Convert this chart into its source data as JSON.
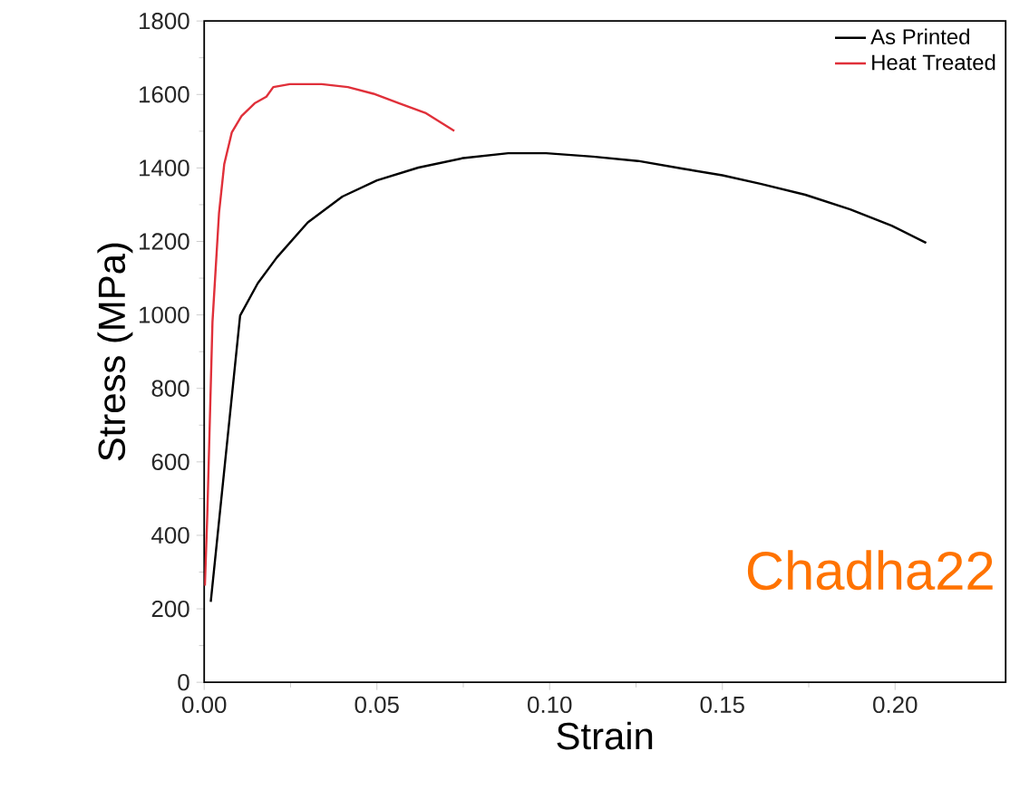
{
  "chart_data": {
    "type": "line",
    "xlabel": "Strain",
    "ylabel": "Stress (MPa)",
    "xlim": [
      0,
      0.232
    ],
    "ylim": [
      0,
      1800
    ],
    "xticks": [
      {
        "value": 0,
        "label": "0.00"
      },
      {
        "value": 0.05,
        "label": "0.05"
      },
      {
        "value": 0.1,
        "label": "0.10"
      },
      {
        "value": 0.15,
        "label": "0.15"
      },
      {
        "value": 0.2,
        "label": "0.20"
      }
    ],
    "yticks": [
      0,
      200,
      400,
      600,
      800,
      1000,
      1200,
      1400,
      1600,
      1800
    ],
    "grid": false,
    "legend": "top right",
    "marker": "none",
    "line_style": "solid",
    "annotations": [
      "Chadha22"
    ],
    "series": [
      {
        "name": "As Printed",
        "color": "#000000",
        "x": [
          0.0019,
          0.0104,
          0.0155,
          0.021,
          0.03,
          0.04,
          0.05,
          0.062,
          0.075,
          0.088,
          0.099,
          0.1125,
          0.1256,
          0.1386,
          0.15,
          0.161,
          0.174,
          0.187,
          0.199,
          0.209
        ],
        "values": [
          219,
          998,
          1086,
          1156,
          1252,
          1322,
          1366,
          1401,
          1427,
          1440,
          1440,
          1431,
          1419,
          1398,
          1380,
          1357,
          1327,
          1287,
          1243,
          1196
        ]
      },
      {
        "name": "Heat Treated",
        "color": "#e0303a",
        "x": [
          0.0002,
          0.0009,
          0.0024,
          0.0043,
          0.0058,
          0.008,
          0.0108,
          0.0146,
          0.018,
          0.02,
          0.0248,
          0.034,
          0.0416,
          0.049,
          0.0565,
          0.064,
          0.0724
        ],
        "values": [
          263,
          455,
          981,
          1278,
          1410,
          1497,
          1541,
          1576,
          1594,
          1620,
          1628,
          1628,
          1620,
          1602,
          1576,
          1550,
          1501
        ]
      }
    ]
  }
}
